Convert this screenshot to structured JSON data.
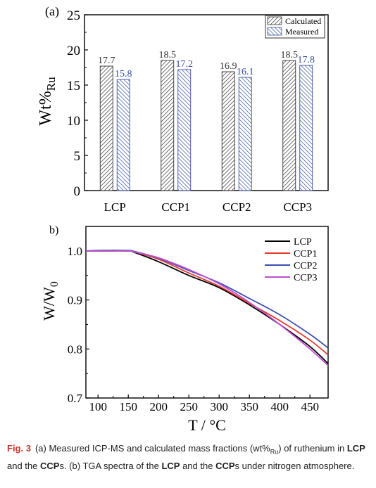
{
  "chart_data": [
    {
      "type": "bar",
      "panel_label": "(a)",
      "categories": [
        "LCP",
        "CCP1",
        "CCP2",
        "CCP3"
      ],
      "series": [
        {
          "name": "Calculated",
          "values": [
            17.7,
            18.5,
            16.9,
            18.5
          ],
          "color": "#333333"
        },
        {
          "name": "Measured",
          "values": [
            15.8,
            17.2,
            16.1,
            17.8
          ],
          "color": "#3a4fa0"
        }
      ],
      "ylabel": "Wt%",
      "ylabel_sub": "Ru",
      "ylim": [
        0,
        25
      ],
      "yticks": [
        0,
        5,
        10,
        15,
        20,
        25
      ],
      "legend": "top-right",
      "grid": false
    },
    {
      "type": "line",
      "panel_label": "b)",
      "xlabel": "T / °C",
      "ylabel": "W/W",
      "ylabel_sub": "0",
      "xlim": [
        80,
        480
      ],
      "ylim": [
        0.7,
        1.05
      ],
      "xticks": [
        100,
        150,
        200,
        250,
        300,
        350,
        400,
        450
      ],
      "yticks": [
        0.7,
        0.8,
        0.9,
        1.0
      ],
      "yticklabels": [
        "0.7",
        "0.8",
        "0.9",
        "1.0"
      ],
      "legend": "top-right",
      "grid": false,
      "x": [
        80,
        100,
        150,
        160,
        200,
        250,
        300,
        350,
        400,
        450,
        480
      ],
      "series": [
        {
          "name": "LCP",
          "color": "#000000",
          "values": [
            1.0,
            1.0,
            1.0,
            0.997,
            0.978,
            0.95,
            0.925,
            0.89,
            0.85,
            0.805,
            0.77
          ]
        },
        {
          "name": "CCP1",
          "color": "#e8392b",
          "values": [
            1.0,
            1.0,
            1.0,
            0.998,
            0.983,
            0.955,
            0.928,
            0.893,
            0.858,
            0.818,
            0.788
          ]
        },
        {
          "name": "CCP2",
          "color": "#3b4fb0",
          "values": [
            1.0,
            1.001,
            1.001,
            0.999,
            0.985,
            0.96,
            0.935,
            0.903,
            0.87,
            0.83,
            0.802
          ]
        },
        {
          "name": "CCP3",
          "color": "#c04fd0",
          "values": [
            1.0,
            1.0,
            1.0,
            0.998,
            0.986,
            0.962,
            0.933,
            0.895,
            0.85,
            0.8,
            0.766
          ]
        }
      ]
    }
  ],
  "caption": {
    "label": "Fig. 3",
    "segments": [
      {
        "t": "(a) Measured ICP-MS and calculated mass fractions (wt%",
        "b": false
      },
      {
        "t": "Ru",
        "b": false,
        "sub": true
      },
      {
        "t": ") of ruthenium in ",
        "b": false
      },
      {
        "t": "LCP",
        "b": true
      },
      {
        "t": " and the ",
        "b": false
      },
      {
        "t": "CCP",
        "b": true
      },
      {
        "t": "s. (b) TGA spectra of the ",
        "b": false
      },
      {
        "t": "LCP",
        "b": true
      },
      {
        "t": " and the ",
        "b": false
      },
      {
        "t": "CCP",
        "b": true
      },
      {
        "t": "s under nitrogen atmosphere.",
        "b": false
      }
    ]
  }
}
